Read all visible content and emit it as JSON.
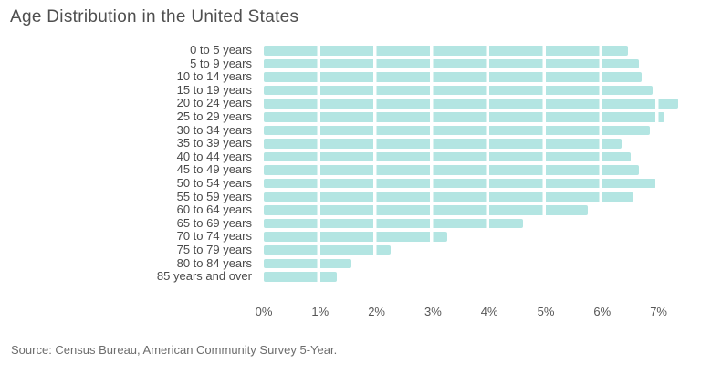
{
  "title": "Age Distribution in the United States",
  "source": "Source: Census Bureau, American Community Survey 5-Year.",
  "colors": {
    "bar": "#b3e5e2",
    "segment_gap": "#ffffff"
  },
  "chart_data": {
    "type": "bar",
    "orientation": "horizontal",
    "title": "Age Distribution in the United States",
    "categories": [
      "0 to 5 years",
      "5 to 9 years",
      "10 to 14 years",
      "15 to 19 years",
      "20 to 24 years",
      "25 to 29 years",
      "30 to 34 years",
      "35 to 39 years",
      "40 to 44 years",
      "45 to 49 years",
      "50 to 54 years",
      "55 to 59 years",
      "60 to 64 years",
      "65 to 69 years",
      "70 to 74 years",
      "75 to 79 years",
      "80 to 84 years",
      "85 years and over"
    ],
    "values": [
      6.45,
      6.65,
      6.7,
      6.9,
      7.35,
      7.1,
      6.85,
      6.35,
      6.5,
      6.65,
      6.95,
      6.55,
      5.75,
      4.6,
      3.25,
      2.25,
      1.55,
      1.3
    ],
    "unit": "%",
    "xlabel": "",
    "ylabel": "",
    "x_ticks": [
      "0%",
      "1%",
      "2%",
      "3%",
      "4%",
      "5%",
      "6%",
      "7%"
    ],
    "x_tick_values": [
      0,
      1,
      2,
      3,
      4,
      5,
      6,
      7
    ],
    "xlim": [
      0,
      7.5
    ],
    "grid": false,
    "legend": false,
    "bar_style": "segmented-at-each-1-percent"
  }
}
